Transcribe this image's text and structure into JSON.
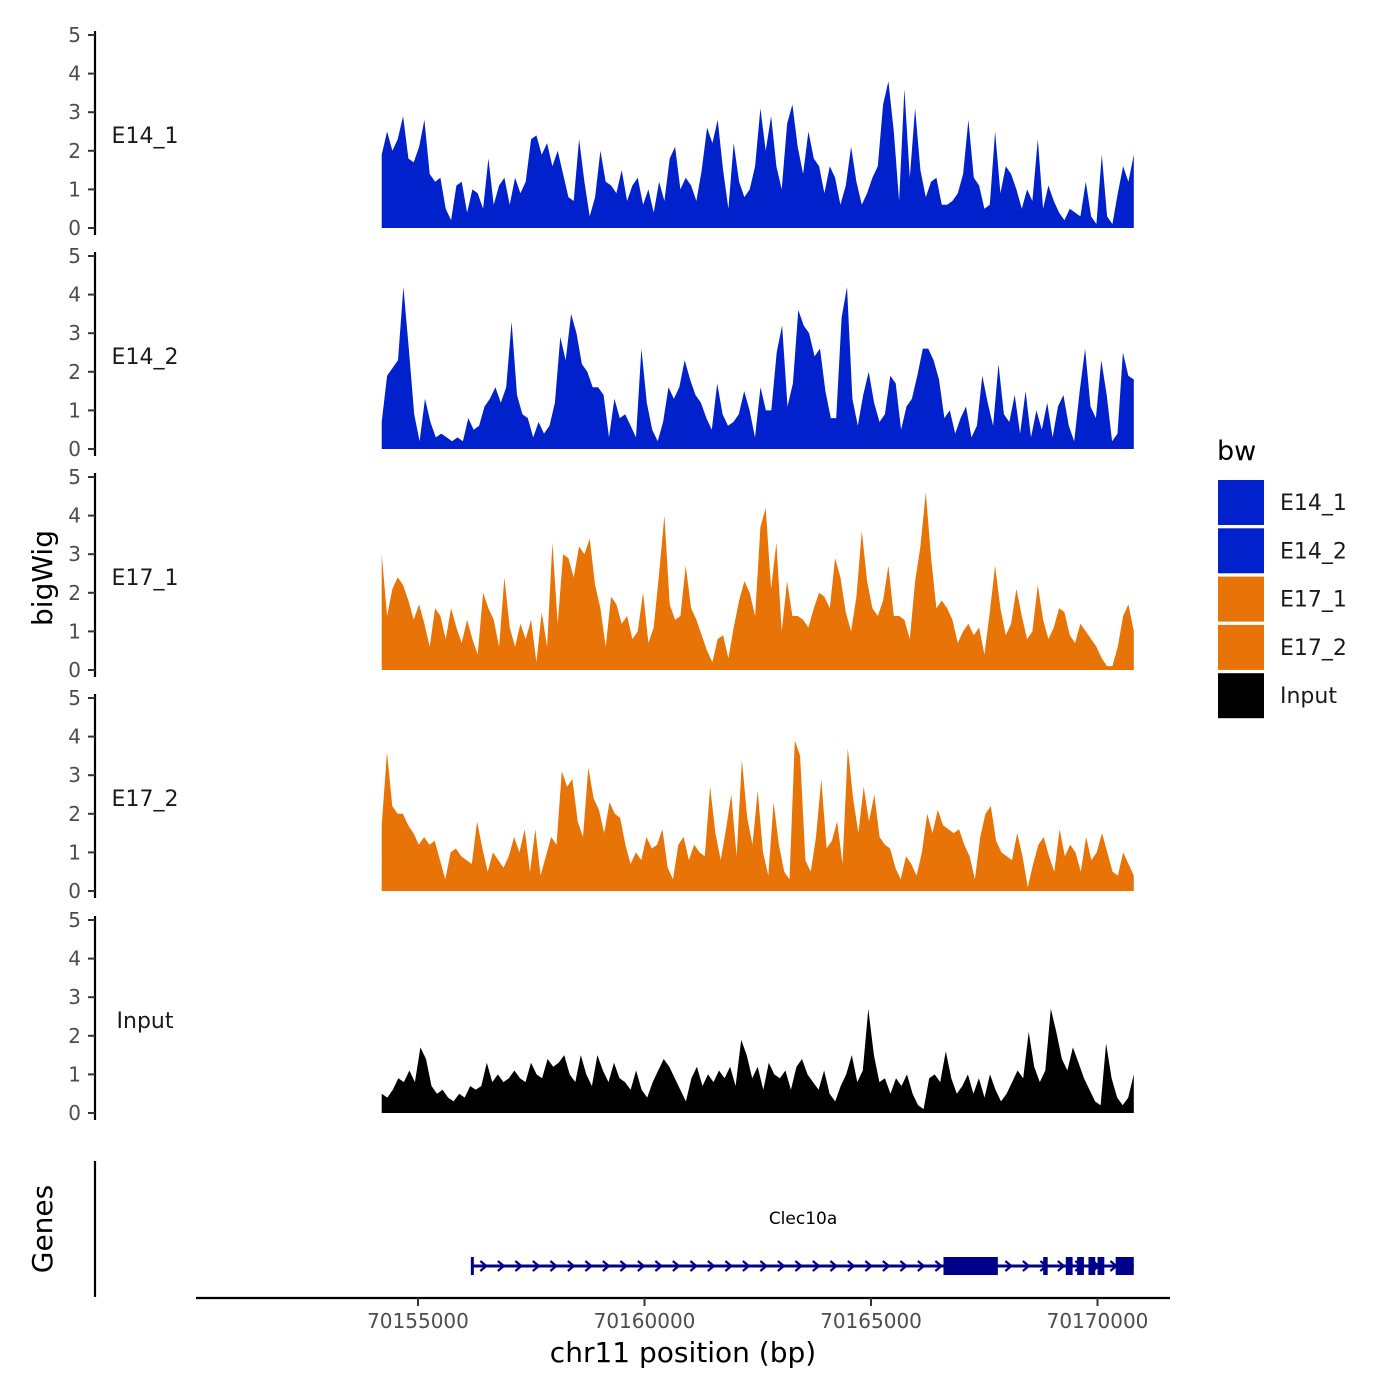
{
  "chart_data": {
    "type": "area",
    "chromosome": "chr11",
    "xlabel": "chr11 position (bp)",
    "ylabel": "bigWig",
    "genes_ylabel": "Genes",
    "xlim": [
      70150100,
      70171600
    ],
    "x_ticks": [
      70155000,
      70160000,
      70165000,
      70170000
    ],
    "x_tick_labels": [
      "70155000",
      "70160000",
      "70165000",
      "70170000"
    ],
    "ylim": [
      0,
      5
    ],
    "y_ticks": [
      0,
      1,
      2,
      3,
      4,
      5
    ],
    "y_tick_labels": [
      "0",
      "1",
      "2",
      "3",
      "4",
      "5"
    ],
    "x_start": 70154200,
    "x_end": 70170800,
    "legend": {
      "title": "bw",
      "entries": [
        {
          "label": "E14_1",
          "color": "#0021CC"
        },
        {
          "label": "E14_2",
          "color": "#0021CC"
        },
        {
          "label": "E17_1",
          "color": "#E87306"
        },
        {
          "label": "E17_2",
          "color": "#E87306"
        },
        {
          "label": "Input",
          "color": "#000000"
        }
      ]
    },
    "series": [
      {
        "name": "E14_1",
        "color": "#0021CC",
        "values": [
          1.9,
          2.5,
          2.0,
          2.3,
          2.9,
          1.8,
          1.7,
          2.1,
          2.8,
          1.4,
          1.2,
          1.3,
          0.5,
          0.2,
          1.1,
          1.2,
          0.4,
          1.0,
          0.9,
          0.5,
          1.8,
          0.6,
          1.1,
          1.3,
          0.6,
          1.3,
          0.9,
          1.2,
          2.3,
          2.4,
          1.9,
          2.2,
          1.6,
          2.0,
          1.4,
          0.8,
          0.7,
          2.3,
          1.2,
          0.3,
          0.8,
          2.0,
          1.2,
          1.1,
          0.9,
          1.5,
          0.7,
          1.1,
          1.3,
          0.6,
          1.0,
          0.4,
          1.2,
          0.7,
          1.8,
          2.1,
          1.0,
          1.3,
          1.1,
          0.7,
          1.5,
          2.6,
          2.2,
          2.8,
          1.5,
          0.5,
          2.2,
          1.2,
          0.8,
          1.0,
          1.6,
          3.1,
          2.0,
          2.9,
          1.6,
          1.0,
          2.7,
          3.2,
          2.1,
          1.4,
          2.5,
          1.8,
          1.6,
          0.9,
          1.6,
          1.3,
          0.6,
          1.1,
          2.1,
          1.2,
          0.6,
          0.9,
          1.3,
          1.6,
          3.2,
          3.8,
          2.5,
          0.7,
          3.6,
          1.3,
          3.1,
          1.5,
          0.8,
          1.2,
          1.3,
          0.6,
          0.6,
          0.7,
          0.9,
          1.4,
          2.8,
          1.3,
          1.1,
          0.5,
          0.6,
          2.5,
          0.9,
          1.6,
          1.4,
          1.0,
          0.5,
          1.0,
          0.7,
          2.3,
          0.5,
          1.1,
          0.7,
          0.4,
          0.2,
          0.5,
          0.4,
          0.3,
          1.2,
          0.3,
          0.1,
          1.9,
          0.3,
          0.1,
          0.9,
          1.6,
          1.2,
          1.9
        ]
      },
      {
        "name": "E14_2",
        "color": "#0021CC",
        "values": [
          0.7,
          1.9,
          2.1,
          2.3,
          4.2,
          2.6,
          0.9,
          0.2,
          1.3,
          0.7,
          0.3,
          0.4,
          0.3,
          0.2,
          0.3,
          0.2,
          0.8,
          0.5,
          0.6,
          1.1,
          1.3,
          1.6,
          1.2,
          1.6,
          3.3,
          1.4,
          0.9,
          0.8,
          0.3,
          0.7,
          0.4,
          0.6,
          1.2,
          2.9,
          2.3,
          3.5,
          3.0,
          2.2,
          2.0,
          1.6,
          1.6,
          1.4,
          0.3,
          1.3,
          0.8,
          0.9,
          0.6,
          0.3,
          2.6,
          1.2,
          0.5,
          0.2,
          0.7,
          1.6,
          1.3,
          1.6,
          2.3,
          1.8,
          1.4,
          1.2,
          0.8,
          0.5,
          1.7,
          0.9,
          0.6,
          0.7,
          0.9,
          1.5,
          1.0,
          0.3,
          1.6,
          1.0,
          1.0,
          2.5,
          3.2,
          1.1,
          1.7,
          3.6,
          3.2,
          3.0,
          2.4,
          2.6,
          1.5,
          0.8,
          0.8,
          3.4,
          4.2,
          1.3,
          0.6,
          1.4,
          2.0,
          1.2,
          0.7,
          0.9,
          1.9,
          1.7,
          0.5,
          1.1,
          1.3,
          1.9,
          2.6,
          2.6,
          2.3,
          1.8,
          0.8,
          1.0,
          0.4,
          0.8,
          1.1,
          0.3,
          0.6,
          1.9,
          1.2,
          0.6,
          2.2,
          0.9,
          0.7,
          1.4,
          0.4,
          1.5,
          0.3,
          1.0,
          0.5,
          1.2,
          0.3,
          1.1,
          1.4,
          0.6,
          0.2,
          1.5,
          2.6,
          1.1,
          0.8,
          2.3,
          1.4,
          0.2,
          0.4,
          2.5,
          1.9,
          1.8
        ]
      },
      {
        "name": "E17_1",
        "color": "#E87306",
        "values": [
          3.0,
          1.4,
          2.1,
          2.4,
          2.2,
          1.8,
          1.3,
          1.7,
          1.2,
          0.6,
          1.6,
          1.4,
          0.8,
          1.6,
          1.1,
          0.7,
          1.3,
          0.8,
          0.4,
          2.0,
          1.6,
          1.3,
          0.6,
          2.4,
          1.1,
          0.6,
          1.2,
          0.8,
          1.3,
          0.2,
          1.5,
          0.6,
          3.3,
          1.2,
          3.0,
          2.9,
          2.4,
          3.2,
          3.0,
          3.4,
          2.2,
          1.6,
          0.6,
          1.9,
          1.7,
          1.2,
          1.4,
          0.8,
          1.0,
          2.0,
          0.7,
          1.1,
          2.5,
          4.0,
          1.7,
          1.3,
          1.4,
          2.7,
          1.6,
          1.3,
          0.9,
          0.5,
          0.2,
          0.8,
          0.9,
          0.3,
          1.1,
          1.8,
          2.3,
          2.0,
          1.4,
          3.7,
          4.2,
          2.1,
          3.3,
          1.0,
          2.3,
          1.4,
          1.4,
          1.3,
          1.1,
          1.6,
          2.0,
          1.9,
          1.6,
          2.9,
          2.4,
          1.5,
          1.0,
          1.9,
          3.6,
          2.3,
          1.6,
          1.4,
          1.8,
          2.7,
          1.4,
          1.4,
          1.3,
          0.8,
          2.3,
          3.2,
          4.6,
          2.9,
          1.6,
          1.8,
          1.6,
          1.3,
          0.7,
          1.0,
          1.2,
          0.9,
          1.1,
          0.4,
          1.5,
          2.7,
          1.6,
          0.9,
          1.2,
          2.1,
          1.4,
          0.8,
          1.0,
          2.2,
          1.3,
          0.8,
          1.1,
          1.6,
          1.5,
          0.9,
          0.7,
          1.2,
          1.0,
          0.8,
          0.6,
          0.3,
          0.1,
          0.1,
          0.6,
          1.4,
          1.7,
          1.0
        ]
      },
      {
        "name": "E17_2",
        "color": "#E87306",
        "values": [
          1.7,
          3.6,
          2.2,
          2.0,
          2.0,
          1.7,
          1.5,
          1.2,
          1.4,
          1.2,
          1.3,
          0.8,
          0.3,
          1.0,
          1.1,
          0.9,
          0.8,
          0.7,
          1.8,
          1.1,
          0.5,
          1.0,
          0.8,
          0.6,
          0.9,
          1.4,
          1.0,
          1.6,
          0.5,
          1.6,
          0.4,
          0.9,
          1.4,
          1.2,
          3.1,
          2.7,
          2.9,
          1.8,
          1.4,
          3.2,
          2.4,
          2.1,
          1.5,
          2.3,
          2.0,
          1.9,
          1.2,
          0.7,
          1.0,
          0.8,
          1.4,
          1.1,
          1.2,
          1.6,
          0.6,
          0.3,
          1.2,
          1.4,
          0.8,
          1.2,
          1.0,
          0.9,
          2.7,
          1.5,
          0.8,
          1.6,
          2.5,
          0.9,
          3.4,
          1.9,
          1.2,
          2.6,
          1.0,
          0.4,
          2.3,
          1.2,
          0.5,
          0.3,
          3.9,
          3.5,
          0.8,
          0.5,
          1.4,
          2.9,
          1.1,
          1.3,
          1.8,
          0.7,
          3.7,
          2.4,
          1.5,
          2.7,
          1.8,
          2.5,
          1.4,
          1.2,
          1.1,
          0.6,
          0.3,
          0.9,
          0.7,
          0.4,
          1.0,
          2.0,
          1.5,
          2.1,
          1.7,
          1.6,
          1.5,
          1.6,
          1.2,
          0.9,
          0.3,
          1.4,
          2.0,
          2.2,
          1.3,
          1.0,
          0.9,
          0.8,
          1.5,
          0.9,
          0.1,
          0.7,
          1.2,
          1.4,
          0.9,
          0.5,
          1.6,
          0.9,
          1.2,
          1.0,
          0.5,
          1.4,
          0.8,
          1.0,
          1.5,
          1.0,
          0.5,
          0.4,
          1.0,
          0.7,
          0.4
        ]
      },
      {
        "name": "Input",
        "color": "#000000",
        "values": [
          0.5,
          0.4,
          0.6,
          0.9,
          0.8,
          1.1,
          0.8,
          1.7,
          1.4,
          0.7,
          0.5,
          0.6,
          0.4,
          0.3,
          0.5,
          0.4,
          0.7,
          0.6,
          0.7,
          1.3,
          0.8,
          1.0,
          0.8,
          0.9,
          1.1,
          0.9,
          0.8,
          1.3,
          1.0,
          0.9,
          1.4,
          1.2,
          1.3,
          1.5,
          1.0,
          0.8,
          1.5,
          1.0,
          0.7,
          1.5,
          1.1,
          0.8,
          1.3,
          0.9,
          0.8,
          0.6,
          1.1,
          0.6,
          0.4,
          0.8,
          1.1,
          1.4,
          1.2,
          0.9,
          0.6,
          0.3,
          0.9,
          1.2,
          0.7,
          1.0,
          0.8,
          1.1,
          0.9,
          1.2,
          0.7,
          1.9,
          1.5,
          0.9,
          1.2,
          0.6,
          1.3,
          1.0,
          0.9,
          1.1,
          0.6,
          1.2,
          1.4,
          1.0,
          0.8,
          0.6,
          1.1,
          0.5,
          0.3,
          0.7,
          1.0,
          1.5,
          0.8,
          1.1,
          2.7,
          1.5,
          0.8,
          0.9,
          0.5,
          0.9,
          0.7,
          1.0,
          0.5,
          0.2,
          0.1,
          0.9,
          1.0,
          0.8,
          1.6,
          0.9,
          0.5,
          0.7,
          1.0,
          0.5,
          0.9,
          0.4,
          1.0,
          0.6,
          0.3,
          0.5,
          0.8,
          1.1,
          0.9,
          2.1,
          1.2,
          0.8,
          1.1,
          2.7,
          2.1,
          1.4,
          1.1,
          1.7,
          1.3,
          0.9,
          0.6,
          0.3,
          0.2,
          1.8,
          0.9,
          0.4,
          0.2,
          0.4,
          1.0
        ]
      }
    ],
    "genes": [
      {
        "name": "Clec10a",
        "strand": "+",
        "start": 70156200,
        "end": 70170800,
        "color": "#00008B",
        "exons": [
          [
            70166600,
            70167800
          ],
          [
            70168800,
            70168900
          ],
          [
            70169300,
            70169450
          ],
          [
            70169550,
            70169700
          ],
          [
            70169800,
            70169950
          ],
          [
            70170000,
            70170150
          ],
          [
            70170400,
            70170800
          ]
        ]
      }
    ]
  }
}
